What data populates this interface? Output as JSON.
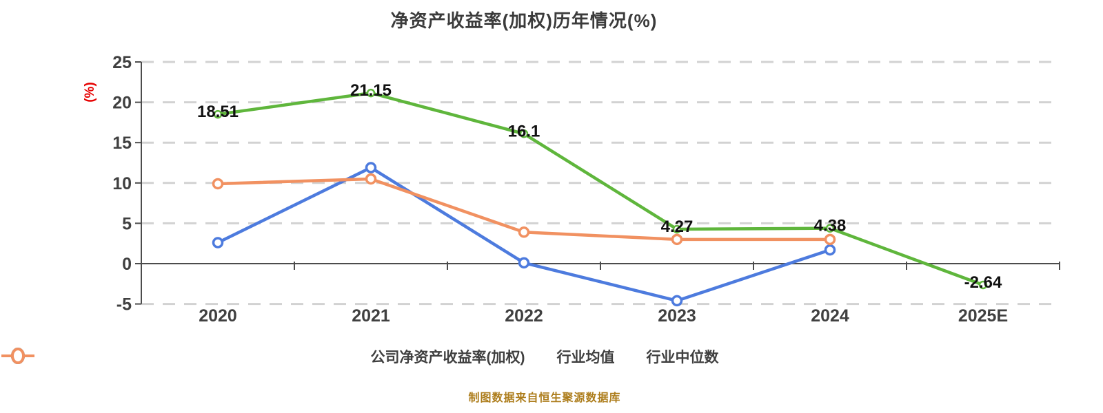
{
  "title": "净资产收益率(加权)历年情况(%)",
  "y_axis": {
    "label": "(%)",
    "ticks": [
      25,
      20,
      15,
      10,
      5,
      0,
      -5
    ],
    "min": -5,
    "max": 25
  },
  "x_axis": {
    "categories": [
      "2020",
      "2021",
      "2022",
      "2023",
      "2024",
      "2025E"
    ]
  },
  "chart_data": {
    "type": "line",
    "title": "净资产收益率(加权)历年情况(%)",
    "categories": [
      "2020",
      "2021",
      "2022",
      "2023",
      "2024",
      "2025E"
    ],
    "series": [
      {
        "name": "公司净资产收益率(加权)",
        "color": "#5fb63c",
        "values": [
          18.51,
          21.15,
          16.1,
          4.27,
          4.38,
          -2.64
        ],
        "point_labels": [
          "18.51",
          "21.15",
          "16.1",
          "4.27",
          "4.38",
          "-2.64"
        ],
        "labeled": true
      },
      {
        "name": "行业均值",
        "color": "#4d7bde",
        "values": [
          2.6,
          11.9,
          0.1,
          -4.6,
          1.7,
          null
        ],
        "labeled": false
      },
      {
        "name": "行业中位数",
        "color": "#f19161",
        "values": [
          9.9,
          10.5,
          3.9,
          3.0,
          3.0,
          null
        ],
        "labeled": false
      }
    ],
    "ylabel": "(%)",
    "ylim": [
      -5,
      25
    ],
    "grid": "horizontal-dashed",
    "legend_position": "bottom"
  },
  "footer": {
    "text": "制图数据来自恒生聚源数据库"
  },
  "colors": {
    "green": "#5fb63c",
    "blue": "#4d7bde",
    "orange": "#f19161",
    "grid": "#d2d2d2",
    "axis": "#4c4c4c",
    "tick_label": "#404040",
    "title": "#3b3b3b",
    "data_label": "#111111",
    "ylabel_red": "#e60000",
    "footer": "#ad7d1c",
    "background": "#ffffff"
  }
}
